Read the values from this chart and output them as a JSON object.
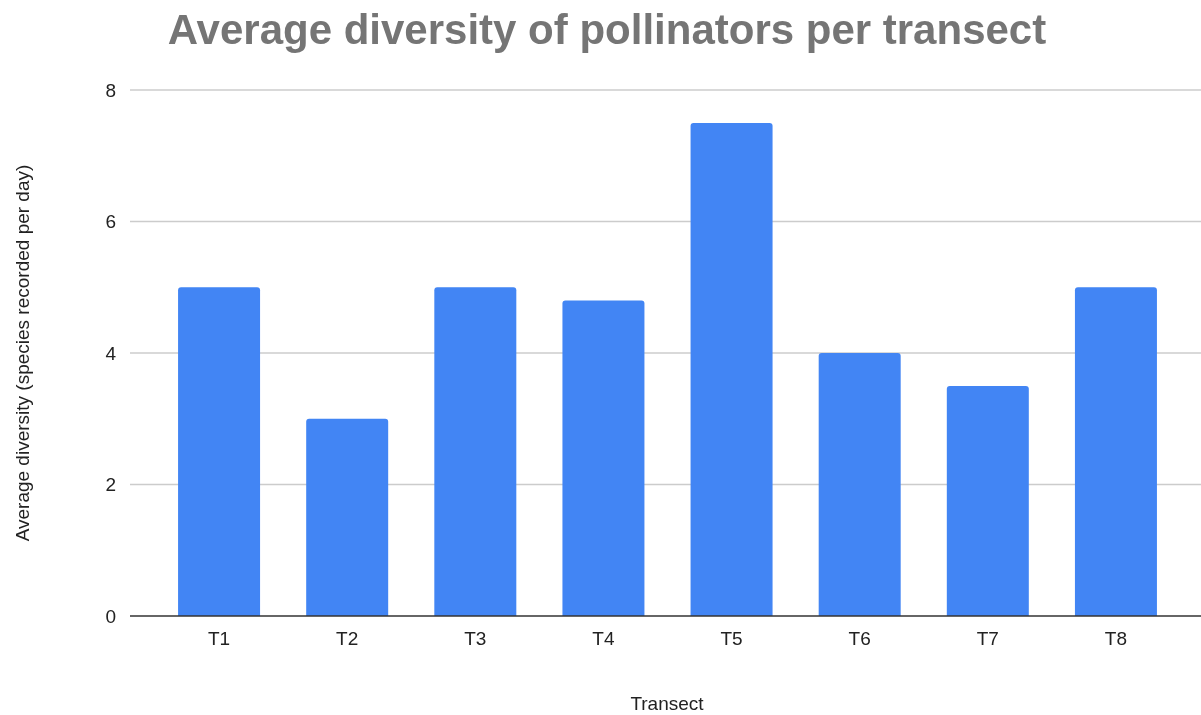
{
  "chart_data": {
    "type": "bar",
    "title": "Average diversity of pollinators per transect",
    "xlabel": "Transect",
    "ylabel": "Average diversity (species recorded per day)",
    "categories": [
      "T1",
      "T2",
      "T3",
      "T4",
      "T5",
      "T6",
      "T7",
      "T8"
    ],
    "values": [
      5,
      3,
      5,
      4.8,
      7.5,
      4,
      3.5,
      5
    ],
    "color": "#4285f4",
    "ylim": [
      0,
      8
    ],
    "yticks": [
      0,
      2,
      4,
      6,
      8
    ],
    "grid": "y"
  }
}
